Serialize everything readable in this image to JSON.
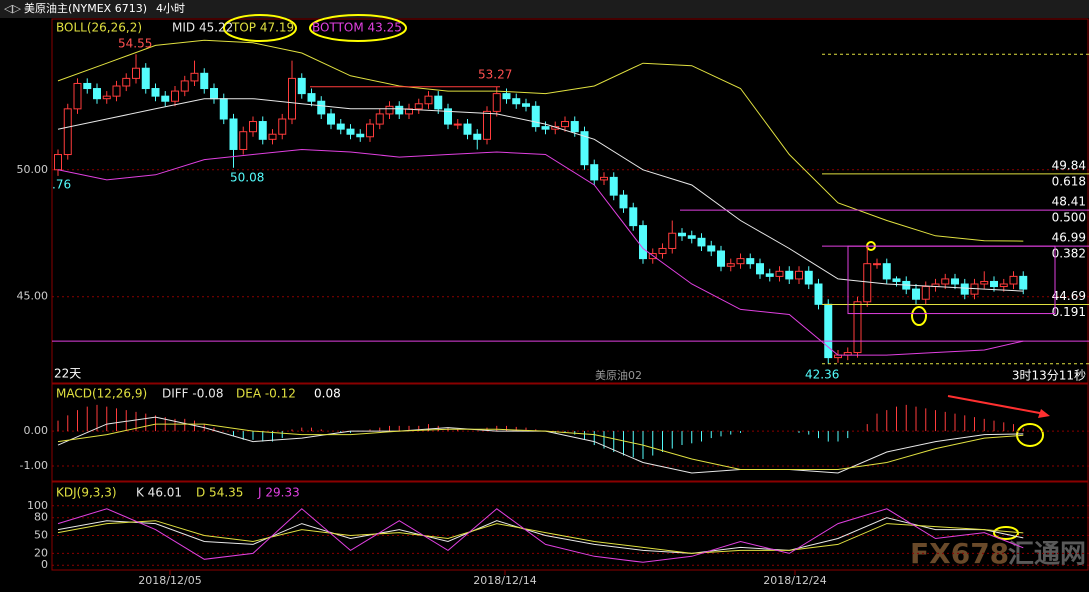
{
  "header": {
    "instrument": "美原油主(NYMEX 6713)",
    "period": "4小时"
  },
  "watermark": {
    "brand": "FX678",
    "site": "汇通网"
  },
  "chart_data": [
    {
      "type": "candlestick",
      "indicator": "BOLL(26,26,2)",
      "ylim": [
        41.6,
        55.9
      ],
      "yticks": [
        {
          "value": 50,
          "label": "50.00"
        },
        {
          "value": 45,
          "label": "45.00"
        }
      ],
      "up_color": "#ff3c3c",
      "down_color": "#54fcfc",
      "candles": [
        [
          50.0,
          50.8,
          49.76,
          50.6
        ],
        [
          50.6,
          52.6,
          50.4,
          52.4
        ],
        [
          52.4,
          53.6,
          52.2,
          53.4
        ],
        [
          53.4,
          53.6,
          53.0,
          53.2
        ],
        [
          53.2,
          53.4,
          52.6,
          52.8
        ],
        [
          52.8,
          53.1,
          52.6,
          52.9
        ],
        [
          52.9,
          53.5,
          52.7,
          53.3
        ],
        [
          53.3,
          53.8,
          53.1,
          53.6
        ],
        [
          53.6,
          54.55,
          53.4,
          54.0
        ],
        [
          54.0,
          54.2,
          53.0,
          53.2
        ],
        [
          53.2,
          53.4,
          52.7,
          52.9
        ],
        [
          52.9,
          53.1,
          52.5,
          52.7
        ],
        [
          52.7,
          53.3,
          52.5,
          53.1
        ],
        [
          53.1,
          53.7,
          52.9,
          53.5
        ],
        [
          53.5,
          54.3,
          53.3,
          53.8
        ],
        [
          53.8,
          54.0,
          53.0,
          53.2
        ],
        [
          53.2,
          53.4,
          52.6,
          52.8
        ],
        [
          52.8,
          53.0,
          51.8,
          52.0
        ],
        [
          52.0,
          52.2,
          50.08,
          50.8
        ],
        [
          50.8,
          51.7,
          50.6,
          51.5
        ],
        [
          51.5,
          52.1,
          51.3,
          51.9
        ],
        [
          51.9,
          52.1,
          51.0,
          51.2
        ],
        [
          51.2,
          51.6,
          51.0,
          51.4
        ],
        [
          51.4,
          52.2,
          51.2,
          52.0
        ],
        [
          52.0,
          54.3,
          51.8,
          53.6
        ],
        [
          53.6,
          53.8,
          52.8,
          53.0
        ],
        [
          53.0,
          53.2,
          52.5,
          52.7
        ],
        [
          52.7,
          52.9,
          52.0,
          52.2
        ],
        [
          52.2,
          52.4,
          51.6,
          51.8
        ],
        [
          51.8,
          52.0,
          51.4,
          51.6
        ],
        [
          51.6,
          51.8,
          51.2,
          51.4
        ],
        [
          51.4,
          51.6,
          51.1,
          51.3
        ],
        [
          51.3,
          52.0,
          51.1,
          51.8
        ],
        [
          51.8,
          52.4,
          51.6,
          52.2
        ],
        [
          52.2,
          52.7,
          52.0,
          52.5
        ],
        [
          52.5,
          52.7,
          52.0,
          52.2
        ],
        [
          52.2,
          52.6,
          52.0,
          52.4
        ],
        [
          52.4,
          52.8,
          52.2,
          52.6
        ],
        [
          52.6,
          53.1,
          52.4,
          52.9
        ],
        [
          52.9,
          53.1,
          52.2,
          52.4
        ],
        [
          52.4,
          52.6,
          51.6,
          51.8
        ],
        [
          51.8,
          52.0,
          51.6,
          51.8
        ],
        [
          51.8,
          52.0,
          51.2,
          51.4
        ],
        [
          51.4,
          51.6,
          50.8,
          51.2
        ],
        [
          51.2,
          52.5,
          51.0,
          52.3
        ],
        [
          52.3,
          53.27,
          52.1,
          53.0
        ],
        [
          53.0,
          53.2,
          52.6,
          52.8
        ],
        [
          52.8,
          53.0,
          52.4,
          52.6
        ],
        [
          52.6,
          52.8,
          52.3,
          52.5
        ],
        [
          52.5,
          52.7,
          51.5,
          51.7
        ],
        [
          51.7,
          51.9,
          51.4,
          51.6
        ],
        [
          51.6,
          51.9,
          51.4,
          51.7
        ],
        [
          51.7,
          52.1,
          51.5,
          51.9
        ],
        [
          51.9,
          52.1,
          51.3,
          51.5
        ],
        [
          51.5,
          51.7,
          50.0,
          50.2
        ],
        [
          50.2,
          50.4,
          49.4,
          49.6
        ],
        [
          49.6,
          49.9,
          49.4,
          49.7
        ],
        [
          49.7,
          49.9,
          48.8,
          49.0
        ],
        [
          49.0,
          49.2,
          48.3,
          48.5
        ],
        [
          48.5,
          48.7,
          47.6,
          47.8
        ],
        [
          47.8,
          48.0,
          46.3,
          46.5
        ],
        [
          46.5,
          46.9,
          46.3,
          46.7
        ],
        [
          46.7,
          47.1,
          46.5,
          46.9
        ],
        [
          46.9,
          48.0,
          46.7,
          47.5
        ],
        [
          47.5,
          47.7,
          47.2,
          47.4
        ],
        [
          47.4,
          47.6,
          47.1,
          47.3
        ],
        [
          47.3,
          47.5,
          46.8,
          47.0
        ],
        [
          47.0,
          47.2,
          46.6,
          46.8
        ],
        [
          46.8,
          47.0,
          46.0,
          46.2
        ],
        [
          46.2,
          46.5,
          46.0,
          46.3
        ],
        [
          46.3,
          46.7,
          46.1,
          46.5
        ],
        [
          46.5,
          46.7,
          46.1,
          46.3
        ],
        [
          46.3,
          46.5,
          45.7,
          45.9
        ],
        [
          45.9,
          46.1,
          45.6,
          45.8
        ],
        [
          45.8,
          46.2,
          45.6,
          46.0
        ],
        [
          46.0,
          46.2,
          45.5,
          45.7
        ],
        [
          45.7,
          46.2,
          45.5,
          46.0
        ],
        [
          46.0,
          46.2,
          45.3,
          45.5
        ],
        [
          45.5,
          45.7,
          44.5,
          44.7
        ],
        [
          44.7,
          44.9,
          42.36,
          42.6
        ],
        [
          42.6,
          42.9,
          42.4,
          42.7
        ],
        [
          42.7,
          43.0,
          42.5,
          42.8
        ],
        [
          42.8,
          45.0,
          42.6,
          44.8
        ],
        [
          44.8,
          47.0,
          44.6,
          46.3
        ],
        [
          46.3,
          46.5,
          46.1,
          46.3
        ],
        [
          46.3,
          46.5,
          45.5,
          45.7
        ],
        [
          45.7,
          45.8,
          45.4,
          45.6
        ],
        [
          45.6,
          45.8,
          45.1,
          45.3
        ],
        [
          45.3,
          45.5,
          44.7,
          44.9
        ],
        [
          44.9,
          45.6,
          44.7,
          45.4
        ],
        [
          45.4,
          45.7,
          45.2,
          45.5
        ],
        [
          45.5,
          45.9,
          45.3,
          45.7
        ],
        [
          45.7,
          45.9,
          45.3,
          45.5
        ],
        [
          45.5,
          45.7,
          44.9,
          45.1
        ],
        [
          45.1,
          45.7,
          44.9,
          45.5
        ],
        [
          45.5,
          46.0,
          45.3,
          45.6
        ],
        [
          45.6,
          45.8,
          45.2,
          45.4
        ],
        [
          45.4,
          45.7,
          45.2,
          45.5
        ],
        [
          45.5,
          46.0,
          45.3,
          45.8
        ],
        [
          45.8,
          46.0,
          45.1,
          45.3
        ]
      ],
      "x": [
        0,
        5,
        10,
        15,
        20,
        25,
        30,
        35,
        40,
        45,
        50,
        55,
        60,
        65,
        70,
        75,
        80,
        85,
        90,
        95,
        99
      ],
      "series": [
        {
          "name": "MID 45.22",
          "color": "#e8e8e8",
          "values": [
            51.6,
            52.0,
            52.4,
            52.8,
            52.8,
            52.6,
            52.4,
            52.4,
            52.3,
            52.2,
            51.8,
            51.2,
            50.0,
            49.4,
            48.0,
            46.9,
            45.7,
            45.5,
            45.4,
            45.3,
            45.22
          ]
        },
        {
          "name": "TOP 47.19",
          "color": "#e0e040",
          "values": [
            53.5,
            54.2,
            54.9,
            55.1,
            55.0,
            54.6,
            53.7,
            53.3,
            53.1,
            53.1,
            53.0,
            53.3,
            54.2,
            54.1,
            53.2,
            50.6,
            48.7,
            48.0,
            47.4,
            47.2,
            47.19
          ]
        },
        {
          "name": "BOTTOM 43.25",
          "color": "#e040e0",
          "values": [
            50.0,
            49.6,
            49.8,
            50.4,
            50.6,
            50.8,
            50.7,
            50.5,
            50.6,
            50.7,
            50.6,
            49.4,
            46.9,
            45.5,
            44.5,
            44.3,
            42.7,
            42.7,
            42.8,
            42.9,
            43.25
          ]
        }
      ],
      "price_labels": [
        54.55,
        50.08,
        53.27,
        42.36
      ],
      "cut_label": ".76",
      "fib_levels": [
        {
          "value": 49.84,
          "ratio": "0.618",
          "color": "#e0e040"
        },
        {
          "value": 48.41,
          "ratio": "0.500",
          "color": "#e040e0"
        },
        {
          "value": 46.99,
          "ratio": "0.382",
          "color": "#e040e0"
        },
        {
          "value": 44.69,
          "ratio": "0.191",
          "color": "#e0e040"
        }
      ],
      "notes": {
        "days": "22天",
        "contract": "美原油02",
        "countdown": "3时13分11秒"
      }
    },
    {
      "type": "macd",
      "indicator": "MACD(12,26,9)",
      "ylim": [
        -1.4,
        1.29
      ],
      "yticks": [
        {
          "value": 0,
          "label": "0.00"
        },
        {
          "value": -1,
          "label": "-1.00"
        }
      ],
      "histogram": {
        "name": "0.08",
        "up_color": "#ff3c3c",
        "down_color": "#54fcfc",
        "values": [
          0.3,
          0.45,
          0.6,
          0.7,
          0.75,
          0.7,
          0.65,
          0.6,
          0.55,
          0.5,
          0.45,
          0.4,
          0.35,
          0.35,
          0.3,
          0.2,
          0.1,
          0.0,
          -0.15,
          -0.25,
          -0.25,
          -0.3,
          -0.3,
          -0.2,
          0.05,
          0.1,
          0.1,
          0.05,
          0.0,
          -0.05,
          -0.05,
          0.0,
          0.05,
          0.1,
          0.15,
          0.15,
          0.15,
          0.15,
          0.2,
          0.15,
          0.1,
          0.05,
          0.0,
          0.0,
          0.1,
          0.15,
          0.15,
          0.12,
          0.1,
          0.05,
          0.0,
          -0.05,
          -0.05,
          -0.1,
          -0.25,
          -0.4,
          -0.5,
          -0.6,
          -0.7,
          -0.75,
          -0.8,
          -0.7,
          -0.6,
          -0.5,
          -0.4,
          -0.35,
          -0.3,
          -0.2,
          -0.15,
          -0.1,
          -0.05,
          0.0,
          0.0,
          0.0,
          0.0,
          0.0,
          -0.05,
          -0.1,
          -0.2,
          -0.3,
          -0.3,
          -0.2,
          0.0,
          0.2,
          0.5,
          0.6,
          0.7,
          0.75,
          0.7,
          0.65,
          0.6,
          0.55,
          0.5,
          0.45,
          0.4,
          0.35,
          0.3,
          0.25,
          0.2,
          0.08
        ]
      },
      "x": [
        0,
        5,
        10,
        15,
        20,
        25,
        30,
        35,
        40,
        45,
        50,
        55,
        60,
        65,
        70,
        75,
        80,
        85,
        90,
        95,
        99
      ],
      "series": [
        {
          "name": "DIFF -0.08",
          "color": "#e8e8e8",
          "values": [
            -0.4,
            0.2,
            0.4,
            0.1,
            -0.3,
            -0.2,
            0.0,
            0.0,
            0.1,
            0.0,
            0.0,
            -0.3,
            -0.9,
            -1.2,
            -1.1,
            -1.1,
            -1.2,
            -0.6,
            -0.3,
            -0.1,
            -0.08
          ]
        },
        {
          "name": "DEA -0.12",
          "color": "#e0e040",
          "values": [
            -0.3,
            -0.1,
            0.2,
            0.2,
            0.0,
            -0.1,
            -0.1,
            0.0,
            0.05,
            0.05,
            0.0,
            -0.1,
            -0.4,
            -0.8,
            -1.1,
            -1.1,
            -1.1,
            -0.9,
            -0.5,
            -0.2,
            -0.12
          ]
        }
      ]
    },
    {
      "type": "line",
      "indicator": "KDJ(9,3,3)",
      "ylim": [
        -8,
        135
      ],
      "yticks": [
        100,
        80,
        50,
        20,
        0
      ],
      "x": [
        0,
        5,
        10,
        15,
        20,
        25,
        30,
        35,
        40,
        45,
        50,
        55,
        60,
        65,
        70,
        75,
        80,
        85,
        90,
        95,
        99
      ],
      "series": [
        {
          "name": "K 46.01",
          "color": "#e8e8e8",
          "values": [
            60,
            75,
            70,
            40,
            35,
            70,
            45,
            60,
            40,
            75,
            50,
            35,
            25,
            20,
            30,
            25,
            45,
            80,
            60,
            60,
            46.01
          ]
        },
        {
          "name": "D 54.35",
          "color": "#e0e040",
          "values": [
            55,
            70,
            75,
            50,
            40,
            60,
            50,
            55,
            45,
            70,
            55,
            40,
            30,
            20,
            25,
            25,
            35,
            70,
            65,
            60,
            54.35
          ]
        },
        {
          "name": "J 29.33",
          "color": "#e040e0",
          "values": [
            70,
            95,
            60,
            10,
            20,
            95,
            25,
            75,
            25,
            95,
            35,
            15,
            5,
            15,
            40,
            20,
            70,
            95,
            45,
            55,
            29.33
          ]
        }
      ],
      "categories": [
        "2018/12/05",
        "2018/12/14",
        "2018/12/24"
      ]
    }
  ]
}
